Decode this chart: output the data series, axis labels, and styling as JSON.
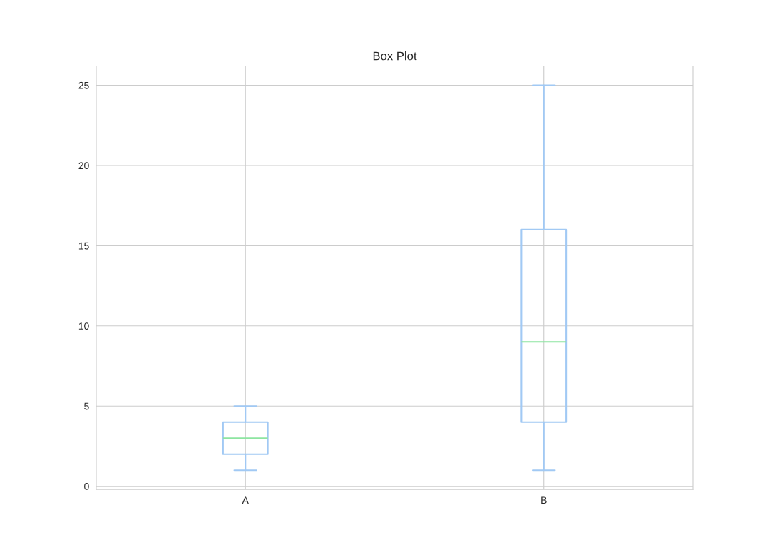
{
  "chart_data": {
    "type": "box",
    "title": "Box Plot",
    "categories": [
      "A",
      "B"
    ],
    "series": [
      {
        "color": "#a1c9f4",
        "boxes": [
          {
            "low": 1,
            "q1": 2,
            "median": 3,
            "q3": 4,
            "high": 5
          },
          {
            "low": 1,
            "q1": 4,
            "median": 9,
            "q3": 16,
            "high": 25
          }
        ]
      }
    ],
    "ylim": [
      -0.2,
      26.2
    ],
    "yticks": [
      0,
      5,
      10,
      15,
      20,
      25
    ],
    "grid": true
  }
}
